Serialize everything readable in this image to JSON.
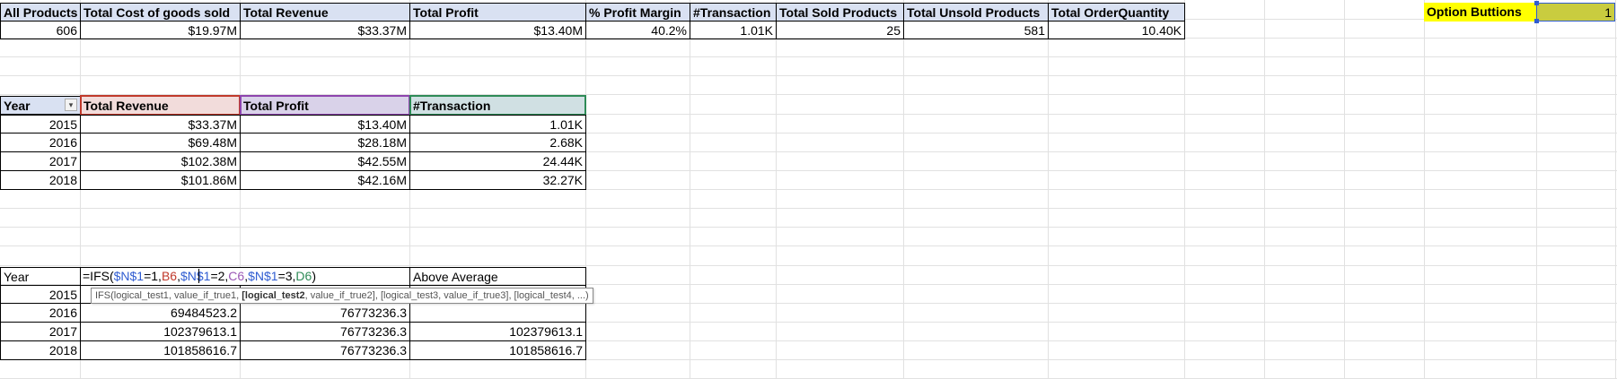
{
  "kpi": {
    "headers": [
      "All Products",
      "Total Cost of goods sold",
      "Total Revenue",
      "Total Profit",
      "% Profit Margin",
      "#Transaction",
      "Total Sold Products",
      "Total Unsold Products",
      "Total OrderQuantity"
    ],
    "values": [
      "606",
      "$19.97M",
      "$33.37M",
      "$13.40M",
      "40.2%",
      "1.01K",
      "25",
      "581",
      "10.40K"
    ]
  },
  "option": {
    "label": "Option Buttions",
    "value": "1"
  },
  "yearly": {
    "headers": [
      "Year",
      "Total Revenue",
      "Total Profit",
      "#Transaction"
    ],
    "rows": [
      [
        "2015",
        "$33.37M",
        "$13.40M",
        "1.01K"
      ],
      [
        "2016",
        "$69.48M",
        "$28.18M",
        "2.68K"
      ],
      [
        "2017",
        "$102.38M",
        "$42.55M",
        "24.44K"
      ],
      [
        "2018",
        "$101.86M",
        "$42.16M",
        "32.27K"
      ]
    ]
  },
  "calc": {
    "header_year": "Year",
    "formula_parts": [
      "=IFS(",
      "$N$1",
      "=1,",
      "B6",
      ",",
      "$N$1",
      "=2,",
      "C6",
      ",",
      "$N$1",
      "=3,",
      "D6",
      ")"
    ],
    "header_above": "Above Average",
    "tooltip_pre": "IFS(logical_test1, value_if_true1, ",
    "tooltip_bold": "[logical_test2",
    "tooltip_post": ", value_if_true2], [logical_test3, value_if_true3], [logical_test4, ...)",
    "rows": [
      [
        "2015",
        "",
        "",
        ""
      ],
      [
        "2016",
        "69484523.2",
        "76773236.3",
        ""
      ],
      [
        "2017",
        "102379613.1",
        "76773236.3",
        "102379613.1"
      ],
      [
        "2018",
        "101858616.7",
        "76773236.3",
        "101858616.7"
      ]
    ]
  }
}
